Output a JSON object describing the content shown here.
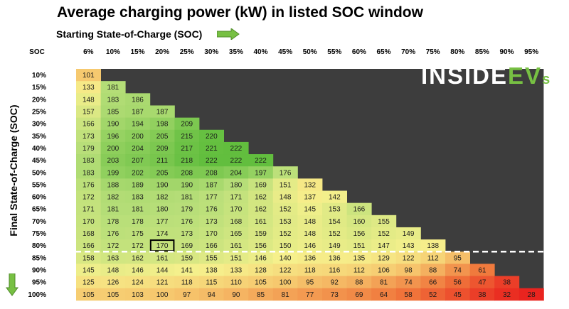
{
  "chart_data": {
    "type": "heatmap",
    "title": "Average charging power (kW) in listed SOC window",
    "xlabel": "Starting State-of-Charge (SOC)",
    "ylabel": "Final State-of-Charge (SOC)",
    "corner_label": "SOC",
    "x": [
      "6%",
      "10%",
      "15%",
      "20%",
      "25%",
      "30%",
      "35%",
      "40%",
      "45%",
      "50%",
      "55%",
      "60%",
      "65%",
      "70%",
      "75%",
      "80%",
      "85%",
      "90%",
      "95%"
    ],
    "y": [
      "10%",
      "15%",
      "20%",
      "25%",
      "30%",
      "35%",
      "40%",
      "45%",
      "50%",
      "55%",
      "60%",
      "65%",
      "70%",
      "75%",
      "80%",
      "85%",
      "90%",
      "95%",
      "100%"
    ],
    "values": [
      [
        101
      ],
      [
        133,
        181
      ],
      [
        148,
        183,
        186
      ],
      [
        157,
        185,
        187,
        187
      ],
      [
        166,
        190,
        194,
        198,
        209
      ],
      [
        173,
        196,
        200,
        205,
        215,
        220
      ],
      [
        179,
        200,
        204,
        209,
        217,
        221,
        222
      ],
      [
        183,
        203,
        207,
        211,
        218,
        222,
        222,
        222
      ],
      [
        183,
        199,
        202,
        205,
        208,
        208,
        204,
        197,
        176
      ],
      [
        176,
        188,
        189,
        190,
        190,
        187,
        180,
        169,
        151,
        132
      ],
      [
        172,
        182,
        183,
        182,
        181,
        177,
        171,
        162,
        148,
        137,
        142
      ],
      [
        171,
        181,
        181,
        180,
        179,
        176,
        170,
        162,
        152,
        145,
        153,
        166
      ],
      [
        170,
        178,
        178,
        177,
        176,
        173,
        168,
        161,
        153,
        148,
        154,
        160,
        155
      ],
      [
        168,
        176,
        175,
        174,
        173,
        170,
        165,
        159,
        152,
        148,
        152,
        156,
        152,
        149
      ],
      [
        166,
        172,
        172,
        170,
        169,
        166,
        161,
        156,
        150,
        146,
        149,
        151,
        147,
        143,
        138
      ],
      [
        158,
        163,
        162,
        161,
        159,
        155,
        151,
        146,
        140,
        136,
        136,
        135,
        129,
        122,
        112,
        95
      ],
      [
        145,
        148,
        146,
        144,
        141,
        138,
        133,
        128,
        122,
        118,
        116,
        112,
        106,
        98,
        88,
        74,
        61
      ],
      [
        125,
        126,
        124,
        121,
        118,
        115,
        110,
        105,
        100,
        95,
        92,
        88,
        81,
        74,
        66,
        56,
        47,
        38
      ],
      [
        105,
        105,
        103,
        100,
        97,
        94,
        90,
        85,
        81,
        77,
        73,
        69,
        64,
        58,
        52,
        45,
        38,
        32,
        28
      ]
    ],
    "highlight_cell": {
      "row": "80%",
      "col": "20%",
      "value": 170
    },
    "threshold_line_between": [
      "80%",
      "85%"
    ]
  },
  "logo": {
    "part1": "INSIDE",
    "part2": "EV",
    "part3": "s"
  },
  "colors": {
    "background": "#3d3d3d",
    "highlight_border": "#000000",
    "threshold_line": "#ffffff",
    "arrow": "#77c043"
  }
}
